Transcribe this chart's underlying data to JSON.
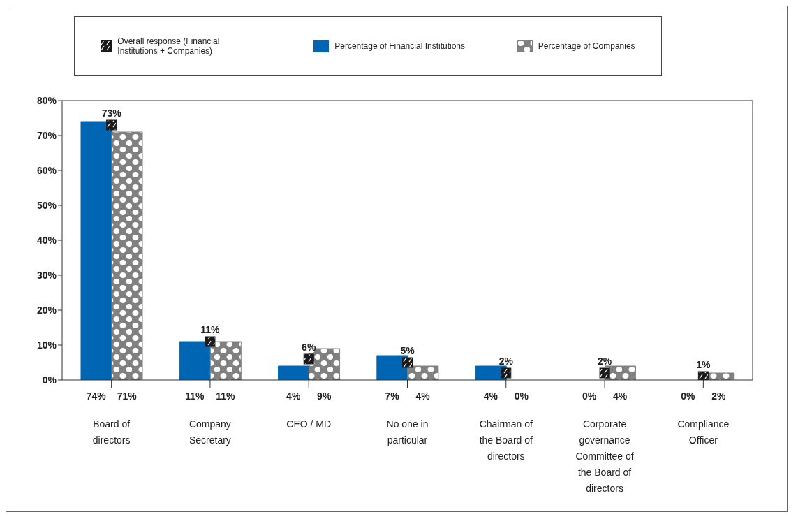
{
  "chart_data": {
    "type": "bar",
    "categories": [
      "Board of directors",
      "Company Secretary",
      "CEO / MD",
      "No one in particular",
      "Chairman of the Board of directors",
      "Corporate governance Committee of the Board of directors",
      "Compliance Officer"
    ],
    "series": [
      {
        "name": "Overall response (Financial Institutions + Companies)",
        "type": "scatter",
        "color": "#1a1a1a",
        "values": [
          73,
          11,
          6,
          5,
          2,
          2,
          1
        ],
        "value_labels": [
          "73%",
          "11%",
          "6%",
          "5%",
          "2%",
          "2%",
          "1%"
        ]
      },
      {
        "name": "Percentage of Financial Institutions",
        "type": "bar",
        "color": "#0066b3",
        "values": [
          74,
          11,
          4,
          7,
          4,
          0,
          0
        ],
        "value_labels": [
          "74%",
          "11%",
          "4%",
          "7%",
          "4%",
          "0%",
          "0%"
        ]
      },
      {
        "name": "Percentage of Companies",
        "type": "bar",
        "color": "#808080",
        "values": [
          71,
          11,
          9,
          4,
          0,
          4,
          2
        ],
        "value_labels": [
          "71%",
          "11%",
          "9%",
          "4%",
          "0%",
          "4%",
          "2%"
        ]
      }
    ],
    "ylim": [
      0,
      80
    ],
    "yticks": [
      {
        "value": 0,
        "label": "0%"
      },
      {
        "value": 10,
        "label": "10%"
      },
      {
        "value": 20,
        "label": "20%"
      },
      {
        "value": 30,
        "label": "30%"
      },
      {
        "value": 40,
        "label": "40%"
      },
      {
        "value": 50,
        "label": "50%"
      },
      {
        "value": 60,
        "label": "60%"
      },
      {
        "value": 70,
        "label": "70%"
      },
      {
        "value": 80,
        "label": "80%"
      }
    ],
    "marker": "square",
    "grid": false,
    "legend": "top"
  }
}
